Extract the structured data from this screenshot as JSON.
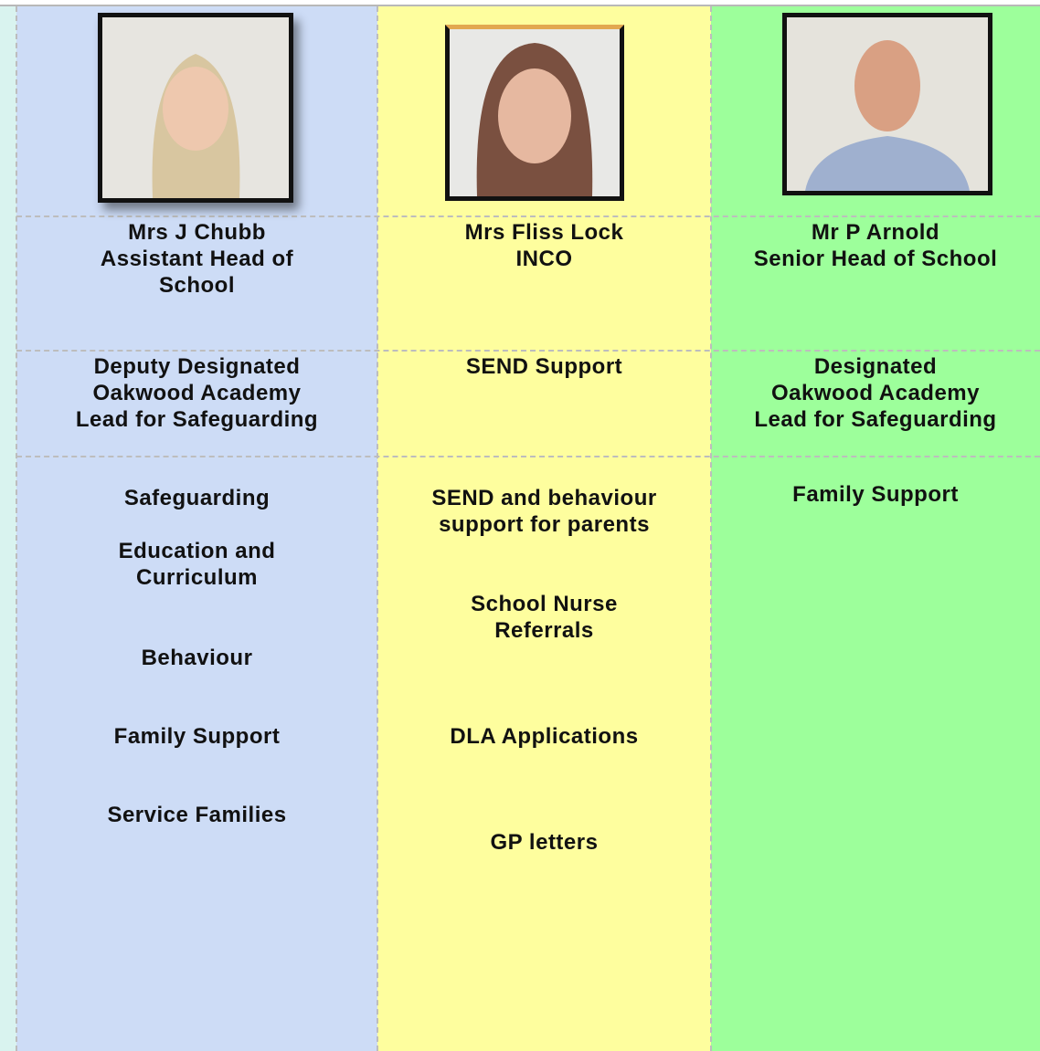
{
  "columns": [
    {
      "name": "Mrs J Chubb",
      "role": [
        "Assistant Head of",
        "School"
      ],
      "designation": [
        "Deputy Designated",
        "Oakwood Academy",
        "Lead for Safeguarding"
      ],
      "duties": [
        [
          "Safeguarding"
        ],
        [
          "Education and",
          "Curriculum"
        ],
        [
          "Behaviour"
        ],
        [
          "Family Support"
        ],
        [
          "Service Families"
        ]
      ]
    },
    {
      "name": "Mrs Fliss Lock",
      "role": [
        "INCO"
      ],
      "designation": [
        "SEND Support"
      ],
      "duties": [
        [
          "SEND and behaviour",
          "support for parents"
        ],
        [
          "School Nurse",
          "Referrals"
        ],
        [
          "DLA Applications"
        ],
        [
          "GP letters"
        ]
      ]
    },
    {
      "name": "Mr P Arnold",
      "role": [
        "Senior Head of School"
      ],
      "designation": [
        "Designated",
        "Oakwood Academy",
        "Lead for Safeguarding"
      ],
      "duties": [
        [
          "Family Support"
        ]
      ]
    }
  ]
}
